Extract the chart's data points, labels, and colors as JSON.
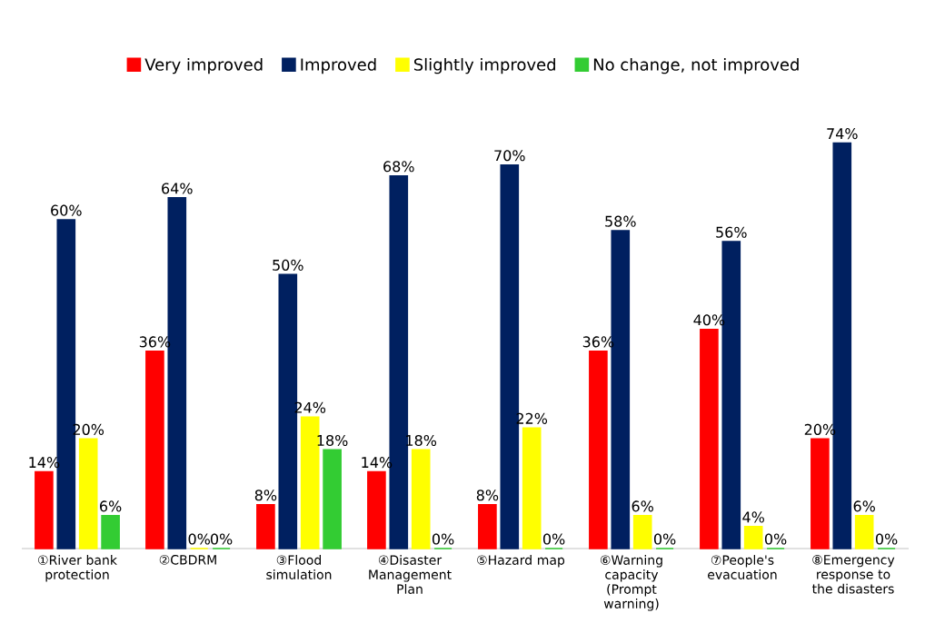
{
  "chart_data": {
    "type": "bar",
    "categories": [
      "①River bank protection",
      "②CBDRM",
      "③Flood simulation",
      "④Disaster Management Plan",
      "⑤Hazard map",
      "⑥Warning capacity (Prompt warning)",
      "⑦People's evacuation",
      "⑧Emergency response to the disasters"
    ],
    "series": [
      {
        "name": "Very improved",
        "color": "#ff0000",
        "values": [
          14,
          36,
          8,
          14,
          8,
          36,
          40,
          20
        ],
        "value_labels": [
          "14%",
          "36%",
          "8%",
          "14%",
          "8%",
          "36%",
          "40%",
          "20%"
        ]
      },
      {
        "name": "Improved",
        "color": "#002060",
        "values": [
          60,
          64,
          50,
          68,
          70,
          58,
          56,
          74
        ],
        "value_labels": [
          "60%",
          "64%",
          "50%",
          "68%",
          "70%",
          "58%",
          "56%",
          "74%"
        ]
      },
      {
        "name": "Slightly improved",
        "color": "#ffff00",
        "values": [
          20,
          0,
          24,
          18,
          22,
          6,
          4,
          6
        ],
        "value_labels": [
          "20%",
          "0%",
          "24%",
          "18%",
          "22%",
          "6%",
          "4%",
          "6%"
        ]
      },
      {
        "name": "No change, not improved",
        "color": "#33cc33",
        "values": [
          6,
          0,
          18,
          0,
          0,
          0,
          0,
          0
        ],
        "value_labels": [
          "6%",
          "0%",
          "18%",
          "0%",
          "0%",
          "0%",
          "0%",
          "0%"
        ]
      }
    ],
    "legend": "top"
  }
}
